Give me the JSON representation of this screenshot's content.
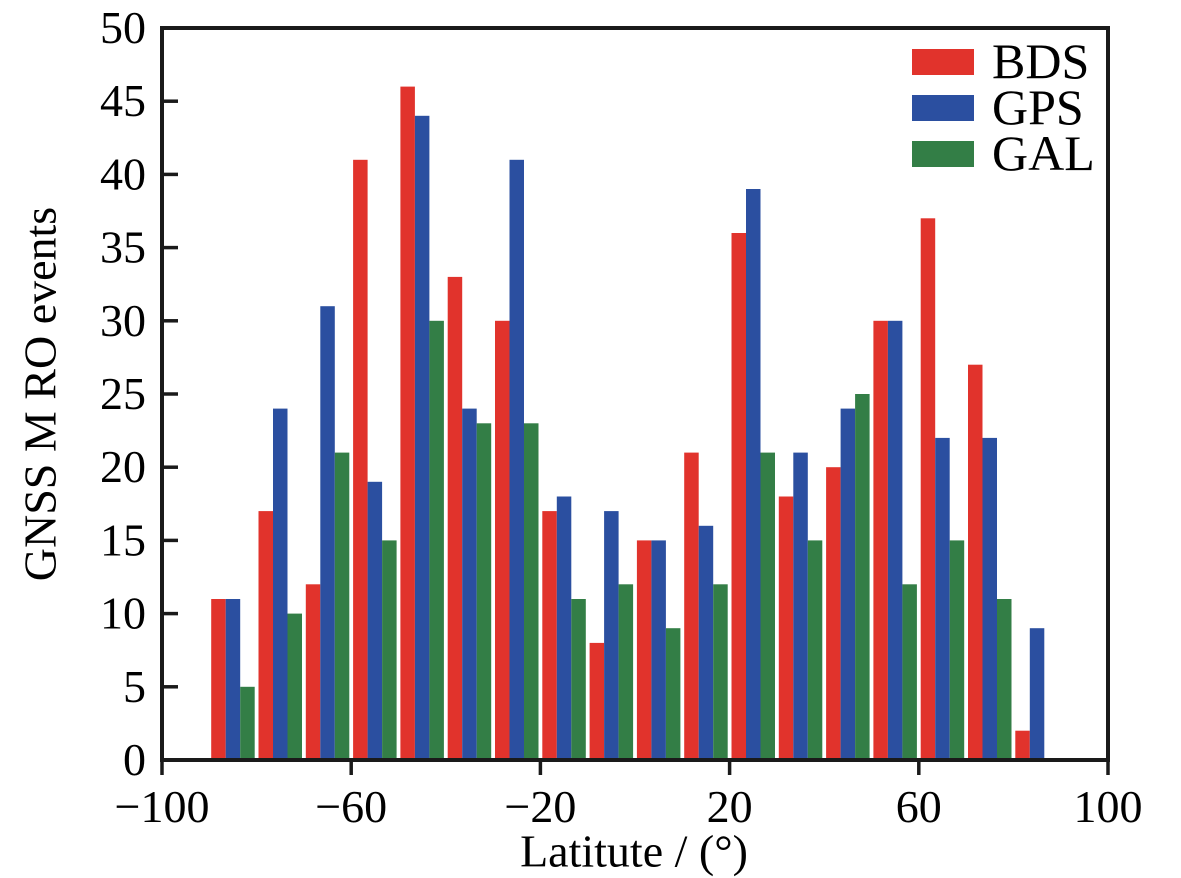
{
  "figure": {
    "background": "#ffffff",
    "text_color": "#000000",
    "frame_color": "#1a1a1a"
  },
  "chart_data": {
    "type": "bar",
    "title": "",
    "xlabel": "Latitute / (°)",
    "ylabel": "GNSS M RO events",
    "xlim": [
      -100,
      100
    ],
    "ylim": [
      0,
      50
    ],
    "grid": false,
    "legend_position": "top-right",
    "x_ticks": [
      {
        "value": -100,
        "label": "−100"
      },
      {
        "value": -60,
        "label": "−60"
      },
      {
        "value": -20,
        "label": "−20"
      },
      {
        "value": 20,
        "label": "20"
      },
      {
        "value": 60,
        "label": "60"
      },
      {
        "value": 100,
        "label": "100"
      }
    ],
    "y_ticks": [
      {
        "value": 0,
        "label": "0"
      },
      {
        "value": 5,
        "label": "5"
      },
      {
        "value": 10,
        "label": "10"
      },
      {
        "value": 15,
        "label": "15"
      },
      {
        "value": 20,
        "label": "20"
      },
      {
        "value": 25,
        "label": "25"
      },
      {
        "value": 30,
        "label": "30"
      },
      {
        "value": 35,
        "label": "35"
      },
      {
        "value": 40,
        "label": "40"
      },
      {
        "value": 45,
        "label": "45"
      },
      {
        "value": 50,
        "label": "50"
      }
    ],
    "categories": [
      -85,
      -75,
      -65,
      -55,
      -45,
      -35,
      -25,
      -15,
      -5,
      5,
      15,
      25,
      35,
      45,
      55,
      65,
      75,
      85
    ],
    "series": [
      {
        "name": "BDS",
        "color": "#e1332c",
        "values": [
          11,
          17,
          12,
          41,
          46,
          33,
          30,
          17,
          8,
          15,
          21,
          36,
          18,
          20,
          30,
          37,
          27,
          2
        ]
      },
      {
        "name": "GPS",
        "color": "#2b4fa0",
        "values": [
          11,
          24,
          31,
          19,
          44,
          24,
          41,
          18,
          17,
          15,
          16,
          39,
          21,
          24,
          30,
          22,
          22,
          9
        ]
      },
      {
        "name": "GAL",
        "color": "#337e46",
        "values": [
          5,
          10,
          21,
          15,
          30,
          23,
          23,
          11,
          12,
          9,
          12,
          21,
          15,
          25,
          12,
          15,
          11,
          0
        ]
      }
    ]
  }
}
